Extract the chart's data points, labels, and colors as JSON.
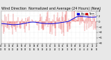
{
  "title": "Wind Direction  Normalized and Average (24 Hours) (New)",
  "title_fontsize": 3.5,
  "bg_color": "#e8e8e8",
  "plot_bg": "#ffffff",
  "n_points": 200,
  "y_min": -8,
  "y_max": 4,
  "yticks": [
    -8,
    -6,
    -4,
    -2,
    0,
    2,
    4
  ],
  "legend_avg_color": "#0000dd",
  "legend_norm_color": "#cc0000",
  "bar_color": "#dd0000",
  "avg_color": "#0000dd",
  "tick_fontsize": 2.8,
  "grid_color": "#cccccc"
}
